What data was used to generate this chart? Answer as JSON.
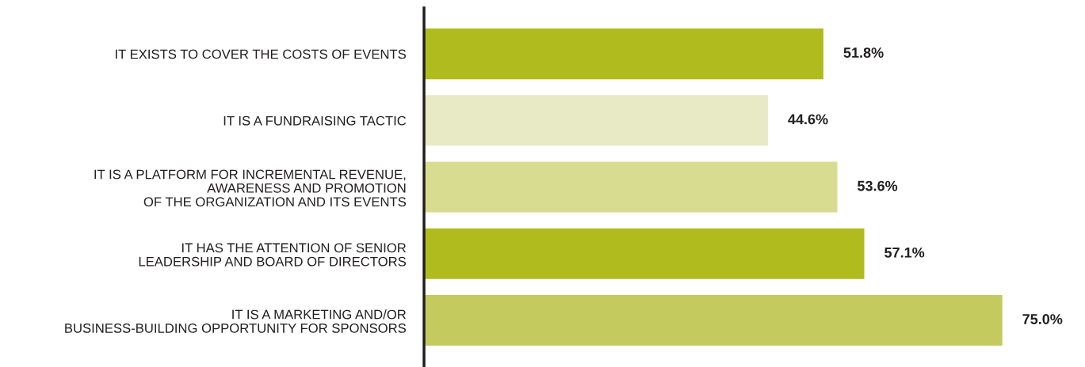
{
  "chart_data": {
    "type": "bar",
    "orientation": "horizontal",
    "value_labels": [
      "51.8%",
      "44.6%",
      "53.6%",
      "57.1%",
      "75.0%"
    ],
    "grid": false,
    "legend": false,
    "tick_labels": "y",
    "categories": [
      "IT EXISTS TO COVER THE COSTS OF EVENTS",
      "IT IS A FUNDRAISING TACTIC",
      "IT IS A PLATFORM FOR INCREMENTAL REVENUE,\nAWARENESS AND PROMOTION\nOF THE ORGANIZATION AND ITS EVENTS",
      "IT HAS THE ATTENTION OF SENIOR\nLEADERSHIP AND BOARD OF DIRECTORS",
      "IT IS A MARKETING AND/OR\nBUSINESS-BUILDING OPPORTUNITY FOR SPONSORS"
    ],
    "values": [
      51.8,
      44.6,
      53.6,
      57.1,
      75.0
    ],
    "colors": [
      "#b0bc1e",
      "#e8eac6",
      "#d8dc90",
      "#b0bc1e",
      "#c4ca5e"
    ]
  }
}
